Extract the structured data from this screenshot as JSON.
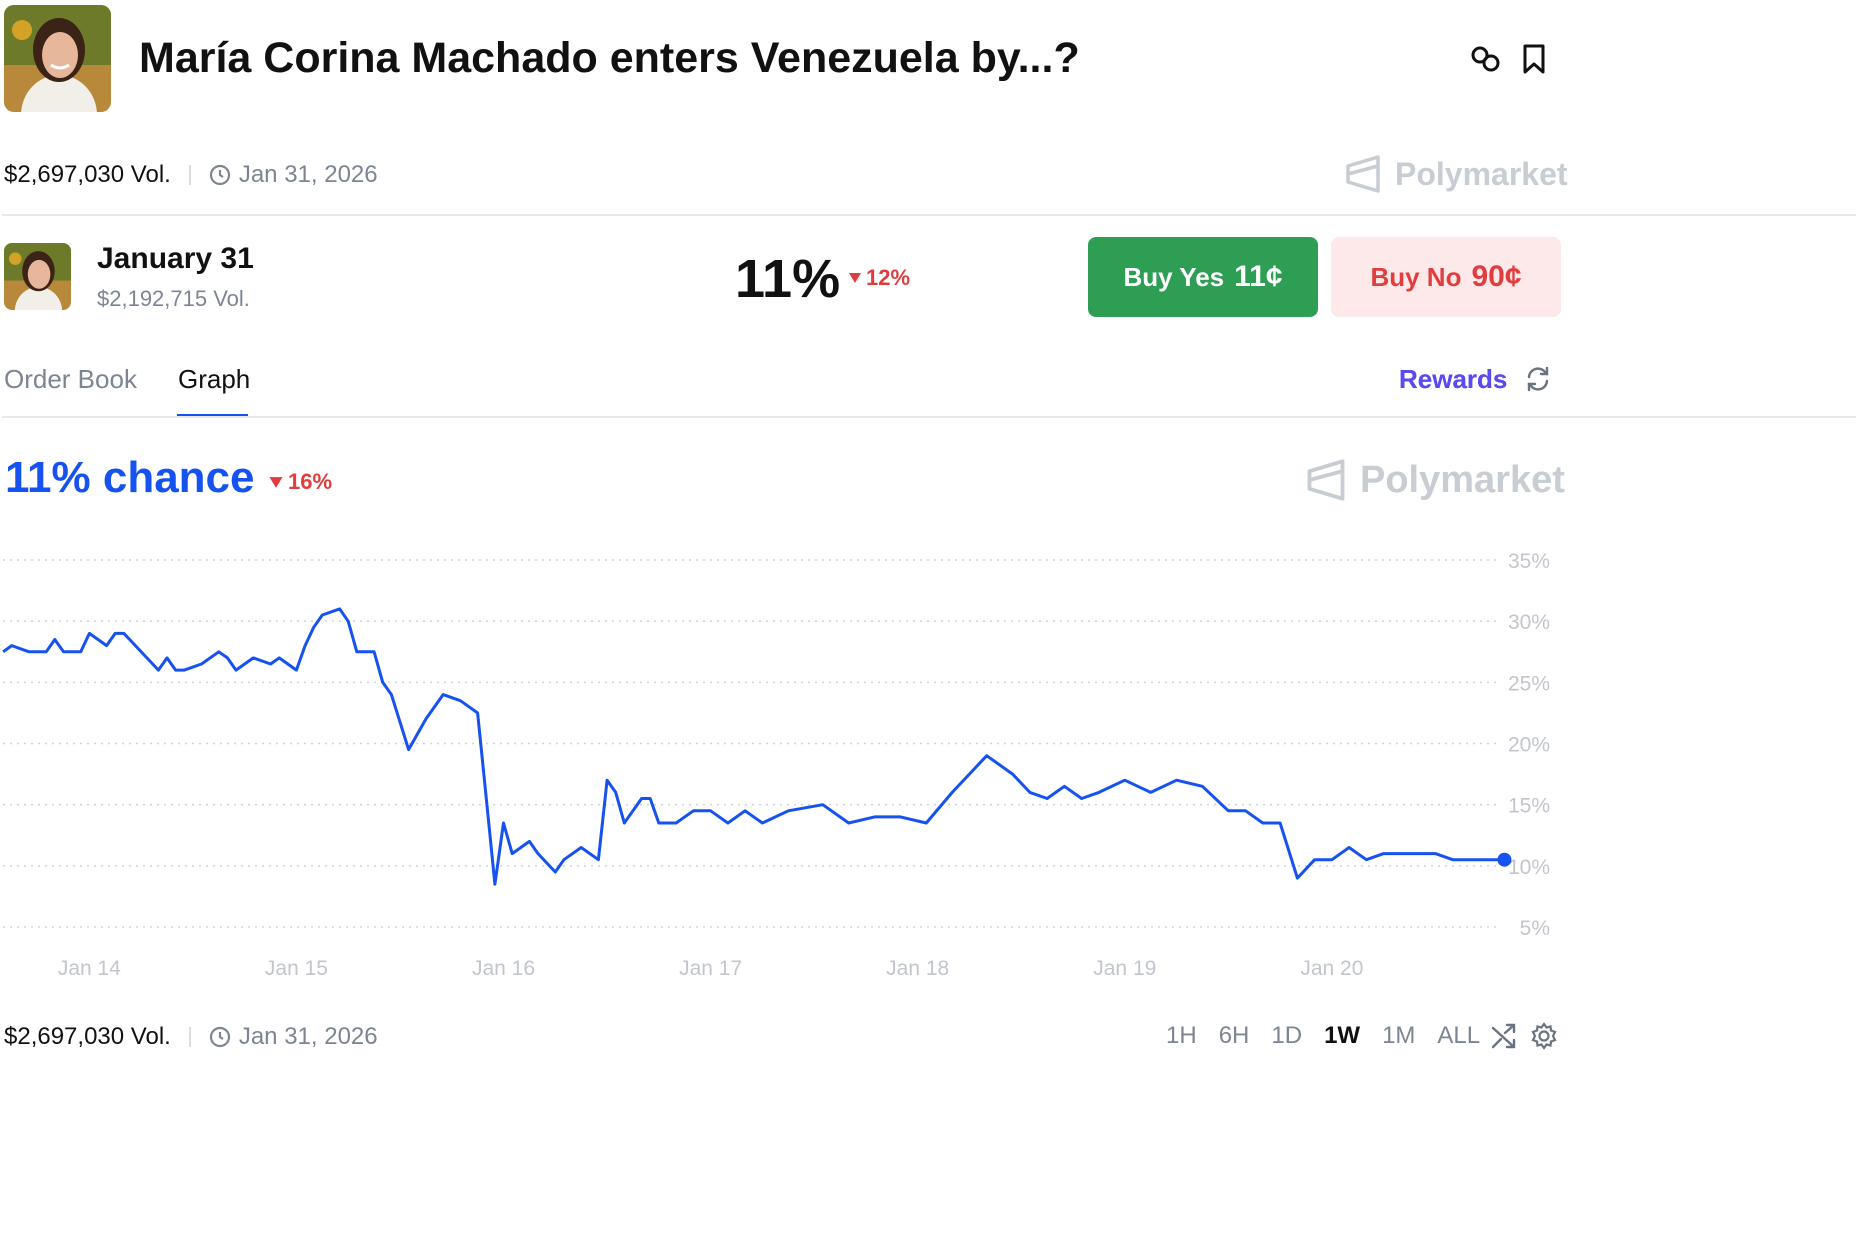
{
  "header": {
    "title": "María Corina Machado enters Venezuela by...?",
    "volume": "$2,697,030 Vol.",
    "end_date": "Jan 31, 2026",
    "brand": "Polymarket"
  },
  "market": {
    "name": "January 31",
    "volume": "$2,192,715 Vol.",
    "probability": "11%",
    "change": "12%",
    "buy_yes_label": "Buy Yes",
    "buy_yes_price": "11¢",
    "buy_no_label": "Buy No",
    "buy_no_price": "90¢"
  },
  "tabs": {
    "order_book": "Order Book",
    "graph": "Graph",
    "active": "Graph",
    "rewards": "Rewards"
  },
  "chance": {
    "text": "11% chance",
    "change": "16%"
  },
  "colors": {
    "accent": "#1652f0",
    "yes": "#2f9e55",
    "no": "#e03e3e",
    "no_bg": "#fde9ea",
    "muted": "#7d8593"
  },
  "chart_data": {
    "type": "line",
    "series": [
      {
        "x": [
          "Jan 13 14:00",
          "Jan 13 15:00",
          "Jan 13 17:00",
          "Jan 13 19:00",
          "Jan 13 20:00",
          "Jan 13 21:00",
          "Jan 13 23:00",
          "Jan 14 00:00",
          "Jan 14 02:00",
          "Jan 14 03:00",
          "Jan 14 04:00",
          "Jan 14 08:00",
          "Jan 14 09:00",
          "Jan 14 10:00",
          "Jan 14 11:00",
          "Jan 14 13:00",
          "Jan 14 15:00",
          "Jan 14 16:00",
          "Jan 14 17:00",
          "Jan 14 19:00",
          "Jan 14 21:00",
          "Jan 14 22:00",
          "Jan 15 00:00",
          "Jan 15 01:00",
          "Jan 15 02:00",
          "Jan 15 03:00",
          "Jan 15 05:00",
          "Jan 15 06:00",
          "Jan 15 07:00",
          "Jan 15 09:00",
          "Jan 15 10:00",
          "Jan 15 11:00",
          "Jan 15 13:00",
          "Jan 15 15:00",
          "Jan 15 17:00",
          "Jan 15 19:00",
          "Jan 15 20:00",
          "Jan 15 21:00",
          "Jan 15 22:00",
          "Jan 15 23:00",
          "Jan 16 00:00",
          "Jan 16 01:00",
          "Jan 16 03:00",
          "Jan 16 04:00",
          "Jan 16 06:00",
          "Jan 16 07:00",
          "Jan 16 09:00",
          "Jan 16 11:00",
          "Jan 16 12:00",
          "Jan 16 13:00",
          "Jan 16 14:00",
          "Jan 16 16:00",
          "Jan 16 17:00",
          "Jan 16 18:00",
          "Jan 16 20:00",
          "Jan 16 22:00",
          "Jan 17 00:00",
          "Jan 17 02:00",
          "Jan 17 04:00",
          "Jan 17 06:00",
          "Jan 17 09:00",
          "Jan 17 13:00",
          "Jan 17 16:00",
          "Jan 17 19:00",
          "Jan 17 22:00",
          "Jan 18 01:00",
          "Jan 18 04:00",
          "Jan 18 08:00",
          "Jan 18 11:00",
          "Jan 18 13:00",
          "Jan 18 15:00",
          "Jan 18 17:00",
          "Jan 18 19:00",
          "Jan 18 21:00",
          "Jan 19 00:00",
          "Jan 19 03:00",
          "Jan 19 06:00",
          "Jan 19 09:00",
          "Jan 19 12:00",
          "Jan 19 14:00",
          "Jan 19 16:00",
          "Jan 19 18:00",
          "Jan 19 20:00",
          "Jan 19 22:00",
          "Jan 20 00:00",
          "Jan 20 02:00",
          "Jan 20 04:00",
          "Jan 20 06:00",
          "Jan 20 07:00",
          "Jan 20 09:00",
          "Jan 20 12:00",
          "Jan 20 14:00",
          "Jan 20 16:00",
          "Jan 20 18:00",
          "Jan 20 20:00"
        ],
        "y": [
          27.5,
          28,
          27.5,
          27.5,
          28.5,
          27.5,
          27.5,
          29,
          28,
          29,
          29,
          26,
          27,
          26,
          26,
          26.5,
          27.5,
          27,
          26,
          27,
          26.5,
          27,
          26,
          28,
          29.5,
          30.5,
          31,
          30,
          27.5,
          27.5,
          25,
          24,
          19.5,
          22,
          24,
          23.5,
          23,
          22.5,
          15.5,
          8.5,
          13.5,
          11,
          12,
          11,
          9.5,
          10.5,
          11.5,
          10.5,
          17,
          16,
          13.5,
          15.5,
          15.5,
          13.5,
          13.5,
          14.5,
          14.5,
          13.5,
          14.5,
          13.5,
          14.5,
          15,
          13.5,
          14,
          14,
          13.5,
          16,
          19,
          17.5,
          16,
          15.5,
          16.5,
          15.5,
          16,
          17,
          16,
          17,
          16.5,
          14.5,
          14.5,
          13.5,
          13.5,
          9,
          10.5,
          10.5,
          11.5,
          10.5,
          11,
          11,
          11,
          11,
          10.5,
          10.5,
          10.5,
          10.5
        ]
      }
    ],
    "x_ticks": [
      "Jan 14",
      "Jan 15",
      "Jan 16",
      "Jan 17",
      "Jan 18",
      "Jan 19",
      "Jan 20"
    ],
    "y_ticks": [
      "35%",
      "30%",
      "25%",
      "20%",
      "15%",
      "10%",
      "5%"
    ],
    "ylim": [
      5,
      35
    ],
    "xlim_days": [
      13.583,
      20.667
    ],
    "grid": true
  },
  "bottom": {
    "volume": "$2,697,030 Vol.",
    "end_date": "Jan 31, 2026",
    "ranges": [
      "1H",
      "6H",
      "1D",
      "1W",
      "1M",
      "ALL"
    ],
    "active_range": "1W"
  }
}
